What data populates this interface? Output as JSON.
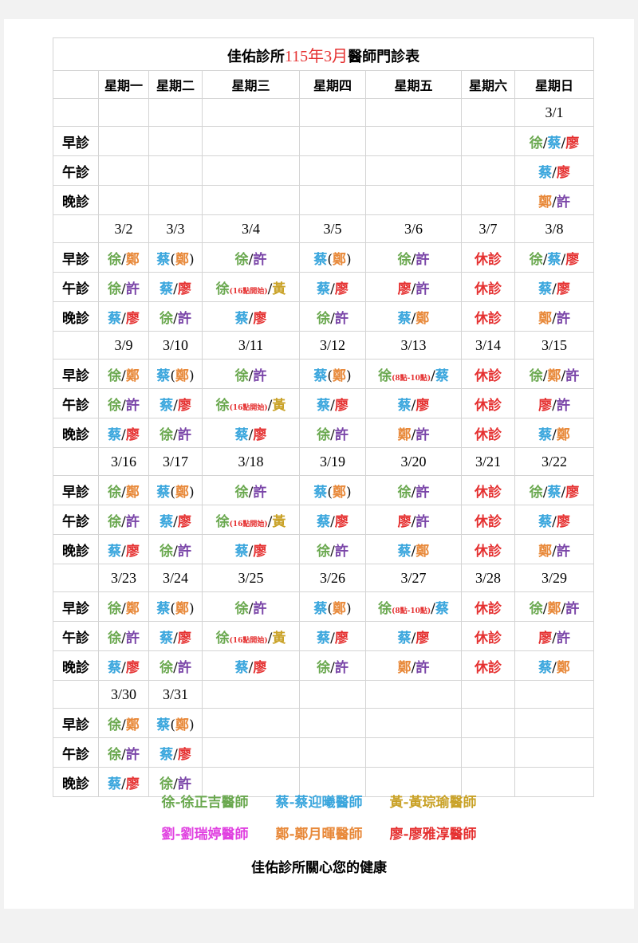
{
  "title": {
    "prefix": "佳佑診所",
    "highlight": "115年3月",
    "suffix": "醫師門診表",
    "highlight_color": "#e53030"
  },
  "weekdays": [
    "星期一",
    "星期二",
    "星期三",
    "星期四",
    "星期五",
    "星期六",
    "星期日"
  ],
  "slot_labels": [
    "早診",
    "午診",
    "晚診"
  ],
  "closed_label": "休診",
  "closed_color": "#e53030",
  "doctor_colors": {
    "徐": "#6aa84f",
    "蔡": "#3aa6dd",
    "黃": "#c9a227",
    "劉": "#e040e0",
    "鄭": "#e8893a",
    "廖": "#e53030",
    "許": "#7a45a8"
  },
  "weeks": [
    {
      "dates": [
        "",
        "",
        "",
        "",
        "",
        "",
        "3/1"
      ],
      "slots": [
        [
          "",
          "",
          "",
          "",
          "",
          "",
          "徐/蔡/廖"
        ],
        [
          "",
          "",
          "",
          "",
          "",
          "",
          "蔡/廖"
        ],
        [
          "",
          "",
          "",
          "",
          "",
          "",
          "鄭/許"
        ]
      ]
    },
    {
      "dates": [
        "3/2",
        "3/3",
        "3/4",
        "3/5",
        "3/6",
        "3/7",
        "3/8"
      ],
      "slots": [
        [
          "徐/鄭",
          "蔡(鄭)",
          "徐/許",
          "蔡(鄭)",
          "徐/許",
          "休診",
          "徐/蔡/廖"
        ],
        [
          "徐/許",
          "蔡/廖",
          "徐(16點開始)/黃",
          "蔡/廖",
          "廖/許",
          "休診",
          "蔡/廖"
        ],
        [
          "蔡/廖",
          "徐/許",
          "蔡/廖",
          "徐/許",
          "蔡/鄭",
          "休診",
          "鄭/許"
        ]
      ]
    },
    {
      "dates": [
        "3/9",
        "3/10",
        "3/11",
        "3/12",
        "3/13",
        "3/14",
        "3/15"
      ],
      "slots": [
        [
          "徐/鄭",
          "蔡(鄭)",
          "徐/許",
          "蔡(鄭)",
          "徐(8點-10點)/蔡",
          "休診",
          "徐/鄭/許"
        ],
        [
          "徐/許",
          "蔡/廖",
          "徐(16點開始)/黃",
          "蔡/廖",
          "蔡/廖",
          "休診",
          "廖/許"
        ],
        [
          "蔡/廖",
          "徐/許",
          "蔡/廖",
          "徐/許",
          "鄭/許",
          "休診",
          "蔡/鄭"
        ]
      ]
    },
    {
      "dates": [
        "3/16",
        "3/17",
        "3/18",
        "3/19",
        "3/20",
        "3/21",
        "3/22"
      ],
      "slots": [
        [
          "徐/鄭",
          "蔡(鄭)",
          "徐/許",
          "蔡(鄭)",
          "徐/許",
          "休診",
          "徐/蔡/廖"
        ],
        [
          "徐/許",
          "蔡/廖",
          "徐(16點開始)/黃",
          "蔡/廖",
          "廖/許",
          "休診",
          "蔡/廖"
        ],
        [
          "蔡/廖",
          "徐/許",
          "蔡/廖",
          "徐/許",
          "蔡/鄭",
          "休診",
          "鄭/許"
        ]
      ]
    },
    {
      "dates": [
        "3/23",
        "3/24",
        "3/25",
        "3/26",
        "3/27",
        "3/28",
        "3/29"
      ],
      "slots": [
        [
          "徐/鄭",
          "蔡(鄭)",
          "徐/許",
          "蔡(鄭)",
          "徐(8點-10點)/蔡",
          "休診",
          "徐/鄭/許"
        ],
        [
          "徐/許",
          "蔡/廖",
          "徐(16點開始)/黃",
          "蔡/廖",
          "蔡/廖",
          "休診",
          "廖/許"
        ],
        [
          "蔡/廖",
          "徐/許",
          "蔡/廖",
          "徐/許",
          "鄭/許",
          "休診",
          "蔡/鄭"
        ]
      ]
    },
    {
      "dates": [
        "3/30",
        "3/31",
        "",
        "",
        "",
        "",
        ""
      ],
      "slots": [
        [
          "徐/鄭",
          "蔡(鄭)",
          "",
          "",
          "",
          "",
          ""
        ],
        [
          "徐/許",
          "蔡/廖",
          "",
          "",
          "",
          "",
          ""
        ],
        [
          "蔡/廖",
          "徐/許",
          "",
          "",
          "",
          "",
          ""
        ]
      ]
    }
  ],
  "legend": [
    [
      {
        "text": "徐-徐正吉醫師",
        "color": "#6aa84f"
      },
      {
        "text": "蔡-蔡迎曦醫師",
        "color": "#3aa6dd"
      },
      {
        "text": "黃-黃琮瑜醫師",
        "color": "#c9a227"
      }
    ],
    [
      {
        "text": "劉-劉瑞婷醫師",
        "color": "#e040e0"
      },
      {
        "text": "鄭-鄭月暉醫師",
        "color": "#e8893a"
      },
      {
        "text": "廖-廖雅淳醫師",
        "color": "#e53030"
      }
    ]
  ],
  "footer": "佳佑診所關心您的健康"
}
